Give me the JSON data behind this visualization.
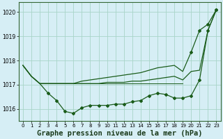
{
  "bg_color": "#d6eef5",
  "grid_color": "#a8d4c8",
  "line_color": "#1a5c1a",
  "title": "Graphe pression niveau de la mer (hPa)",
  "title_fontsize": 7.5,
  "ylim": [
    1015.5,
    1020.4
  ],
  "xlim": [
    -0.5,
    23.5
  ],
  "yticks": [
    1016,
    1017,
    1018,
    1019,
    1020
  ],
  "xticks": [
    0,
    1,
    2,
    3,
    4,
    5,
    6,
    7,
    8,
    9,
    10,
    11,
    12,
    13,
    14,
    15,
    16,
    17,
    18,
    19,
    20,
    21,
    22,
    23
  ],
  "line_big": [
    1017.8,
    1017.35,
    1017.05,
    1017.05,
    1017.05,
    1017.05,
    1017.05,
    1017.05,
    1017.05,
    1017.05,
    1017.1,
    1017.1,
    1017.1,
    1017.15,
    1017.15,
    1017.2,
    1017.25,
    1017.3,
    1017.35,
    1017.2,
    1017.55,
    1017.6,
    1019.25,
    1020.1
  ],
  "line_upper": [
    1017.8,
    1017.35,
    1017.05,
    1017.05,
    1017.05,
    1017.05,
    1017.05,
    1017.15,
    1017.2,
    1017.25,
    1017.3,
    1017.35,
    1017.4,
    1017.45,
    1017.5,
    1017.6,
    1017.7,
    1017.75,
    1017.8,
    1017.55,
    1018.35,
    1019.25,
    1019.5,
    1020.1
  ],
  "line_lower_marked": [
    1017.8,
    1017.35,
    1017.05,
    1016.65,
    1016.35,
    1015.9,
    1015.82,
    1016.05,
    1016.15,
    1016.15,
    1016.15,
    1016.2,
    1016.2,
    1016.3,
    1016.35,
    1016.55,
    1016.65,
    1016.6,
    1016.45,
    1016.45,
    1016.55,
    1017.2,
    1019.25,
    1020.1
  ],
  "line_flat": [
    1017.05,
    1017.05,
    1017.05,
    1017.05,
    1017.05,
    1017.05,
    1017.05,
    1017.05,
    1017.05,
    1017.05,
    1017.05,
    1017.05,
    1017.05,
    1017.05,
    1017.05,
    1017.05,
    1017.05,
    1017.05
  ],
  "marker_start": 3
}
